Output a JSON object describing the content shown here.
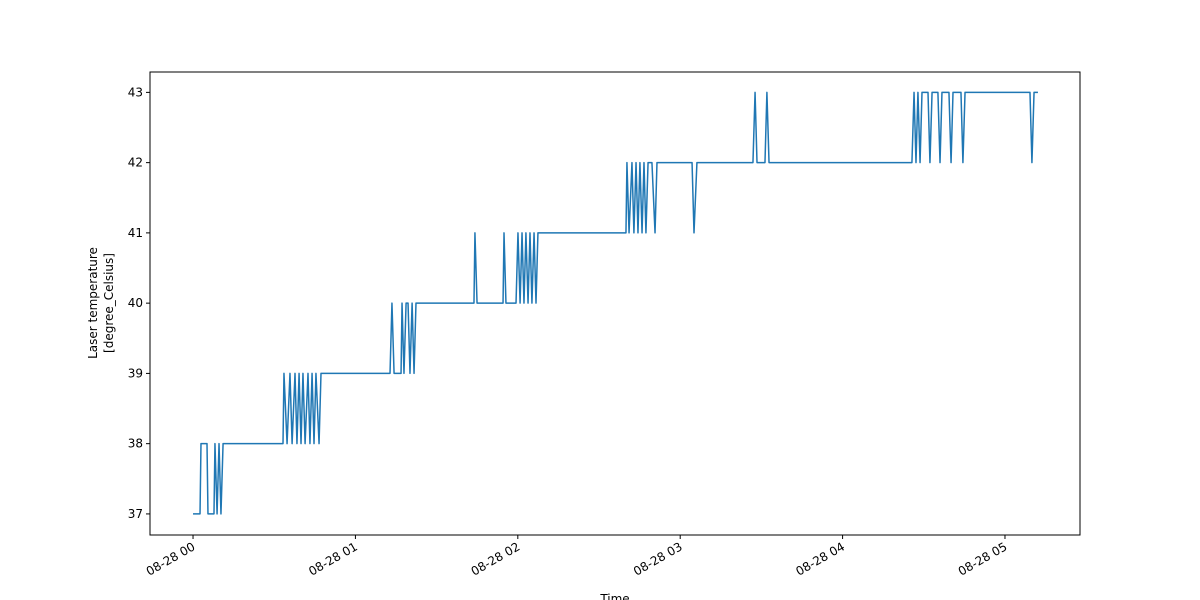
{
  "chart_data": {
    "type": "line",
    "xlabel": "Time",
    "ylabel": [
      "Laser temperature",
      "[degree_Celsius]"
    ],
    "x": [
      0,
      0.043,
      0.049,
      0.086,
      0.092,
      0.129,
      0.135,
      0.148,
      0.16,
      0.172,
      0.185,
      0.554,
      0.56,
      0.579,
      0.597,
      0.61,
      0.628,
      0.64,
      0.653,
      0.665,
      0.677,
      0.69,
      0.708,
      0.72,
      0.733,
      0.745,
      0.757,
      0.776,
      0.788,
      1.213,
      1.225,
      1.238,
      1.281,
      1.287,
      1.299,
      1.312,
      1.324,
      1.336,
      1.349,
      1.361,
      1.373,
      1.73,
      1.736,
      1.749,
      1.909,
      1.915,
      1.927,
      1.989,
      2.001,
      2.014,
      2.026,
      2.038,
      2.05,
      2.063,
      2.075,
      2.087,
      2.1,
      2.112,
      2.124,
      2.666,
      2.672,
      2.685,
      2.703,
      2.715,
      2.728,
      2.74,
      2.752,
      2.765,
      2.777,
      2.789,
      2.802,
      2.814,
      2.826,
      2.845,
      2.857,
      3.073,
      3.085,
      3.103,
      3.448,
      3.461,
      3.473,
      3.522,
      3.534,
      3.547,
      4.427,
      4.44,
      4.452,
      4.464,
      4.477,
      4.489,
      4.526,
      4.538,
      4.551,
      4.587,
      4.6,
      4.612,
      4.655,
      4.668,
      4.68,
      4.729,
      4.741,
      4.754,
      5.154,
      5.166,
      5.179,
      5.203
    ],
    "series": [
      {
        "color": "#1f77b4",
        "values": [
          37,
          37,
          38,
          38,
          37,
          37,
          38,
          37,
          38,
          37,
          38,
          38,
          39,
          38,
          39,
          38,
          39,
          38,
          39,
          38,
          39,
          38,
          39,
          38,
          39,
          38,
          39,
          38,
          39,
          39,
          40,
          39,
          39,
          40,
          39,
          40,
          40,
          39,
          40,
          39,
          40,
          40,
          41,
          40,
          40,
          41,
          40,
          40,
          41,
          40,
          41,
          40,
          41,
          40,
          41,
          40,
          41,
          40,
          41,
          41,
          42,
          41,
          42,
          41,
          42,
          41,
          42,
          41,
          42,
          41,
          42,
          42,
          42,
          41,
          42,
          42,
          41,
          42,
          42,
          43,
          42,
          42,
          43,
          42,
          42,
          43,
          42,
          43,
          42,
          43,
          43,
          42,
          43,
          43,
          42,
          43,
          43,
          42,
          43,
          43,
          42,
          43,
          43,
          42,
          43,
          43
        ]
      }
    ],
    "xlim": [
      -0.265,
      5.462
    ],
    "ylim": [
      36.7,
      43.29
    ],
    "xticks": [
      {
        "value": 0,
        "label": "08-28 00"
      },
      {
        "value": 1,
        "label": "08-28 01"
      },
      {
        "value": 2,
        "label": "08-28 02"
      },
      {
        "value": 3,
        "label": "08-28 03"
      },
      {
        "value": 4,
        "label": "08-28 04"
      },
      {
        "value": 5,
        "label": "08-28 05"
      }
    ],
    "yticks": [
      37,
      38,
      39,
      40,
      41,
      42,
      43
    ]
  }
}
